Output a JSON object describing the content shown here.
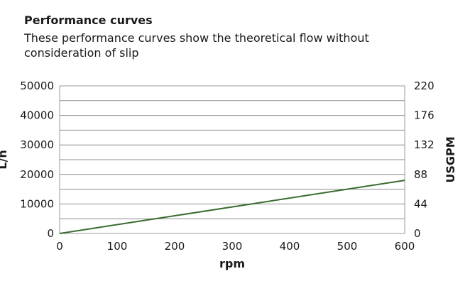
{
  "header": {
    "title": "Performance curves",
    "subtitle": "These performance curves show the theoretical flow without consideration of slip"
  },
  "chart_data": {
    "type": "line",
    "xlabel": "rpm",
    "ylabel": "L/h",
    "y2label": "USGPM",
    "xlim": [
      0,
      600
    ],
    "ylim": [
      0,
      50000
    ],
    "y2lim": [
      0,
      220
    ],
    "x_ticks": [
      "0",
      "100",
      "200",
      "300",
      "400",
      "500",
      "600"
    ],
    "y_ticks": [
      "0",
      "10000",
      "20000",
      "30000",
      "40000",
      "50000"
    ],
    "y2_ticks": [
      "0",
      "44",
      "88",
      "132",
      "176",
      "220"
    ],
    "grid": true,
    "line_color": "#3a6b2e",
    "series": [
      {
        "x": [
          0,
          600
        ],
        "y": [
          0,
          18000
        ]
      }
    ]
  }
}
